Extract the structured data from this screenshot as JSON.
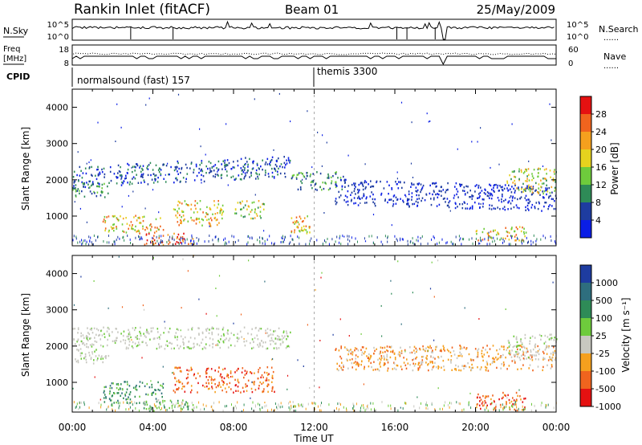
{
  "header": {
    "station": "Rankin Inlet (fitACF)",
    "beam": "Beam 01",
    "date": "25/May/2009"
  },
  "status_panels": {
    "nsky_label": "N.Sky",
    "nsky_ticks": [
      "10^5",
      "10^0"
    ],
    "nsearch_label": "N.Search",
    "nsearch_ticks": [
      "10^5",
      "10^0"
    ],
    "freq_label_1": "Freq",
    "freq_label_2": "[MHz]",
    "freq_ticks": [
      "18",
      "8"
    ],
    "nave_label": "Nave",
    "nave_ticks": [
      "60",
      "0"
    ],
    "cpid_label": "CPID",
    "cpid_segments": [
      {
        "start_hour": 0.0,
        "text": "normalsound (fast) 157"
      },
      {
        "start_hour": 12.0,
        "text": "themis 3300"
      }
    ]
  },
  "x_axis": {
    "label": "Time UT",
    "ticks": [
      "00:00",
      "04:00",
      "08:00",
      "12:00",
      "16:00",
      "20:00",
      "00:00"
    ]
  },
  "chart_data": [
    {
      "type": "heatmap",
      "panel": "power",
      "ylabel": "Slant Range [km]",
      "ylim": [
        180,
        4500
      ],
      "xlim": [
        0,
        24
      ],
      "y_ticks": [
        "4000",
        "3000",
        "2000",
        "1000"
      ],
      "colorbar_label": "Power [dB]",
      "colorbar_ticks": [
        "28",
        "24",
        "20",
        "16",
        "12",
        "8",
        "4"
      ],
      "colorbar_colors": [
        "#e51111",
        "#f0641e",
        "#f5a01e",
        "#e6d21e",
        "#6ecb3c",
        "#2e8b57",
        "#1e3ca0",
        "#0a1ee6"
      ],
      "features": [
        {
          "t_start": 0.0,
          "t_end": 10.8,
          "r_low": 1900,
          "r_high": 2500,
          "level": "low-mid",
          "note": "band rising"
        },
        {
          "t_start": 0.0,
          "t_end": 1.8,
          "r_low": 1500,
          "r_high": 1900,
          "level": "mid"
        },
        {
          "t_start": 10.8,
          "t_end": 13.5,
          "r_low": 1700,
          "r_high": 2200,
          "level": "mid"
        },
        {
          "t_start": 13.0,
          "t_end": 24.0,
          "r_low": 1300,
          "r_high": 2000,
          "level": "low",
          "note": "band descending"
        },
        {
          "t_start": 21.5,
          "t_end": 24.0,
          "r_low": 1600,
          "r_high": 2300,
          "level": "mid-high"
        },
        {
          "t_start": 1.5,
          "t_end": 4.5,
          "r_low": 500,
          "r_high": 1000,
          "level": "high"
        },
        {
          "t_start": 5.0,
          "t_end": 7.5,
          "r_low": 700,
          "r_high": 1400,
          "level": "high"
        },
        {
          "t_start": 8.0,
          "t_end": 9.5,
          "r_low": 900,
          "r_high": 1400,
          "level": "mid-high"
        },
        {
          "t_start": 10.8,
          "t_end": 11.8,
          "r_low": 500,
          "r_high": 1000,
          "level": "high"
        },
        {
          "t_start": 3.5,
          "t_end": 6.0,
          "r_low": 180,
          "r_high": 500,
          "level": "very-high"
        },
        {
          "t_start": 20.0,
          "t_end": 22.5,
          "r_low": 300,
          "r_high": 700,
          "level": "high"
        }
      ]
    },
    {
      "type": "heatmap",
      "panel": "velocity",
      "ylabel": "Slant Range [km]",
      "ylim": [
        180,
        4500
      ],
      "xlim": [
        0,
        24
      ],
      "y_ticks": [
        "4000",
        "3000",
        "2000",
        "1000"
      ],
      "colorbar_label": "Velocity [m s⁻¹]",
      "colorbar_ticks": [
        "1000",
        "500",
        "100",
        "25",
        "-25",
        "-100",
        "-500",
        "-1000"
      ],
      "colorbar_colors": [
        "#1e3ca0",
        "#2e6e7e",
        "#2e8b57",
        "#6ecb3c",
        "#c8c8c0",
        "#f5a01e",
        "#f0641e",
        "#e51111"
      ],
      "features": [
        {
          "t_start": 0.0,
          "t_end": 10.8,
          "r_low": 1900,
          "r_high": 2500,
          "velocity": "~0 (ground scatter)"
        },
        {
          "t_start": 0.0,
          "t_end": 1.8,
          "r_low": 1500,
          "r_high": 1900,
          "velocity": "~0 (ground scatter)"
        },
        {
          "t_start": 13.0,
          "t_end": 24.0,
          "r_low": 1300,
          "r_high": 2000,
          "velocity": "-25 to -100"
        },
        {
          "t_start": 21.5,
          "t_end": 24.0,
          "r_low": 1600,
          "r_high": 2300,
          "velocity": "~0 (ground scatter)"
        },
        {
          "t_start": 5.0,
          "t_end": 10.0,
          "r_low": 700,
          "r_high": 1400,
          "velocity": "-100 to -500"
        },
        {
          "t_start": 1.5,
          "t_end": 4.5,
          "r_low": 400,
          "r_high": 1000,
          "velocity": "100 to 500"
        },
        {
          "t_start": 3.5,
          "t_end": 6.0,
          "r_low": 180,
          "r_high": 500,
          "velocity": "25 to 100"
        },
        {
          "t_start": 20.0,
          "t_end": 22.5,
          "r_low": 200,
          "r_high": 700,
          "velocity": "-100 to -500"
        }
      ]
    }
  ],
  "legend_dots": "......"
}
